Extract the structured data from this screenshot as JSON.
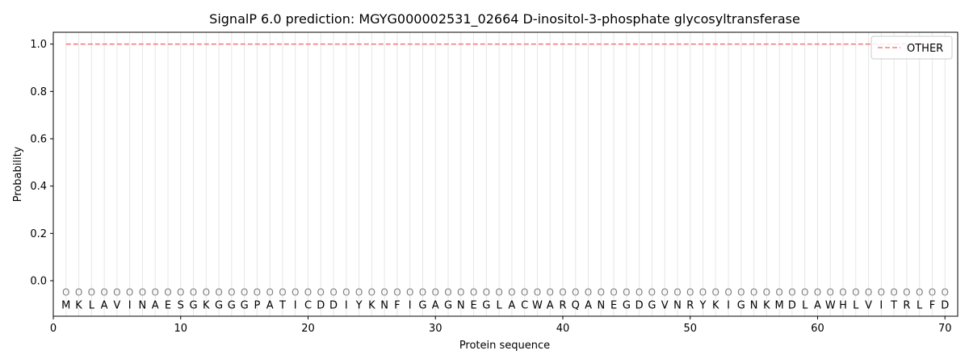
{
  "chart_data": {
    "type": "line",
    "title": "SignalP 6.0 prediction: MGYG000002531_02664 D-inositol-3-phosphate glycosyltransferase",
    "xlabel": "Protein sequence",
    "ylabel": "Probability",
    "xlim": [
      0,
      71
    ],
    "ylim": [
      -0.15,
      1.05
    ],
    "x_ticks": [
      0,
      10,
      20,
      30,
      40,
      50,
      60,
      70
    ],
    "y_ticks": [
      0.0,
      0.2,
      0.4,
      0.6,
      0.8,
      1.0
    ],
    "x_tick_labels": [
      "0",
      "10",
      "20",
      "30",
      "40",
      "50",
      "60",
      "70"
    ],
    "y_tick_labels": [
      "0.0",
      "0.2",
      "0.4",
      "0.6",
      "0.8",
      "1.0"
    ],
    "sequence": [
      "M",
      "K",
      "L",
      "A",
      "V",
      "I",
      "N",
      "A",
      "E",
      "S",
      "G",
      "K",
      "G",
      "G",
      "G",
      "P",
      "A",
      "T",
      "I",
      "C",
      "D",
      "D",
      "I",
      "Y",
      "K",
      "N",
      "F",
      "I",
      "G",
      "A",
      "G",
      "N",
      "E",
      "G",
      "L",
      "A",
      "C",
      "W",
      "A",
      "R",
      "Q",
      "A",
      "N",
      "E",
      "G",
      "D",
      "G",
      "V",
      "N",
      "R",
      "Y",
      "K",
      "I",
      "G",
      "N",
      "K",
      "M",
      "D",
      "L",
      "A",
      "W",
      "H",
      "L",
      "V",
      "I",
      "T",
      "R",
      "L",
      "F",
      "D"
    ],
    "region_marker": "O",
    "series": [
      {
        "name": "OTHER",
        "color": "#f08080",
        "style": "dashed",
        "x_start": 1,
        "x_end": 70,
        "value": 1.0
      }
    ],
    "legend_position": "top-right",
    "grid": "vertical lines at each residue"
  }
}
